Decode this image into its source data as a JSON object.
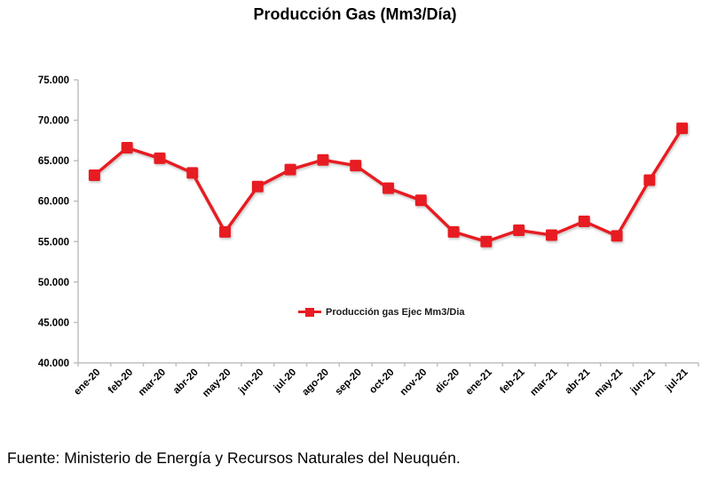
{
  "title": "Producción Gas (Mm3/Día)",
  "footer": "Fuente: Ministerio de Energía y Recursos Naturales del Neuquén.",
  "legend": {
    "label": "Producción gas Ejec Mm3/Dia"
  },
  "colors": {
    "series_red": "#e71d22",
    "axis_gray": "#bfbfbf",
    "tick_text": "#000000"
  },
  "chart_data": {
    "type": "line",
    "title": "Producción Gas (Mm3/Día)",
    "categories": [
      "ene-20",
      "feb-20",
      "mar-20",
      "abr-20",
      "may-20",
      "jun-20",
      "jul-20",
      "ago-20",
      "sep-20",
      "oct-20",
      "nov-20",
      "dic-20",
      "ene-21",
      "feb-21",
      "mar-21",
      "abr-21",
      "may-21",
      "jun-21",
      "jul-21"
    ],
    "series": [
      {
        "name": "Producción gas Ejec Mm3/Dia",
        "values": [
          63200,
          66600,
          65300,
          63500,
          56200,
          61800,
          63900,
          65100,
          64400,
          61600,
          60100,
          56200,
          55000,
          56400,
          55800,
          57500,
          55700,
          62600,
          69000
        ]
      }
    ],
    "xlabel": "",
    "ylabel": "",
    "ylim": [
      40000,
      75000
    ],
    "y_tick_step": 5000,
    "y_tick_labels": [
      "75.000",
      "70.000",
      "65.000",
      "60.000",
      "55.000",
      "50.000",
      "45.000",
      "40.000"
    ],
    "grid": false,
    "legend_position": "inside-center-bottom",
    "marker": "square"
  }
}
